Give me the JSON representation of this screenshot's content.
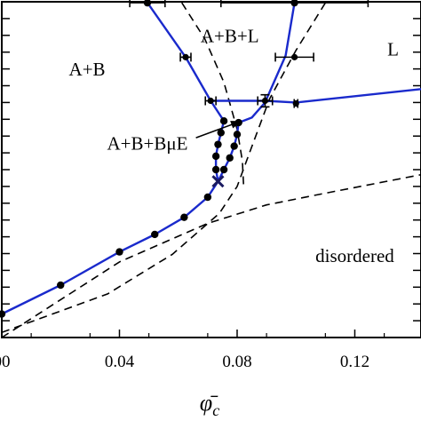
{
  "chart_data": {
    "type": "line",
    "xlabel": "φ̄",
    "xlabel_sub": "c",
    "xlim": [
      0.0,
      0.1425
    ],
    "ylim": [
      0.0,
      1.0
    ],
    "x_ticks": [
      0.0,
      0.04,
      0.08,
      0.12
    ],
    "x_tick_labels": [
      "00",
      "0.04",
      "0.08",
      "0.12"
    ],
    "y_ticks": [
      0.05,
      0.1,
      0.15,
      0.2,
      0.25,
      0.3,
      0.35,
      0.4,
      0.45,
      0.5,
      0.55,
      0.6,
      0.65,
      0.7,
      0.75,
      0.8,
      0.85,
      0.9,
      0.95
    ],
    "grid": false,
    "colors": {
      "phase_line": "#1a2acc",
      "dashed": "#000000",
      "points": "#000000"
    },
    "series": [
      {
        "style": "solid",
        "x": [
          0.0,
          0.02,
          0.04,
          0.052,
          0.062,
          0.07,
          0.072,
          0.0735
        ],
        "y": [
          0.07,
          0.156,
          0.255,
          0.307,
          0.358,
          0.418,
          0.445,
          0.465
        ]
      },
      {
        "style": "solid",
        "x": [
          0.0735,
          0.0728,
          0.0728,
          0.0735,
          0.0745,
          0.0755
        ],
        "y": [
          0.465,
          0.5,
          0.54,
          0.575,
          0.61,
          0.645
        ]
      },
      {
        "style": "solid",
        "x": [
          0.0735,
          0.0755,
          0.0775,
          0.079,
          0.08,
          0.0805
        ],
        "y": [
          0.465,
          0.5,
          0.535,
          0.57,
          0.605,
          0.64
        ]
      },
      {
        "style": "solid",
        "x": [
          0.0755,
          0.071,
          0.0625,
          0.0495
        ],
        "y": [
          0.645,
          0.705,
          0.835,
          0.997
        ]
      },
      {
        "style": "solid",
        "x": [
          0.0805,
          0.085,
          0.0895,
          0.0965,
          0.0995
        ],
        "y": [
          0.64,
          0.655,
          0.7,
          0.84,
          0.997
        ]
      },
      {
        "style": "solid",
        "x": [
          0.071,
          0.0895,
          0.1,
          0.1425
        ],
        "y": [
          0.705,
          0.705,
          0.7,
          0.74
        ]
      },
      {
        "style": "dashed",
        "x": [
          0.0612,
          0.069,
          0.0755,
          0.08,
          0.0818,
          0.0822
        ],
        "y": [
          0.997,
          0.89,
          0.76,
          0.62,
          0.525,
          0.45
        ]
      },
      {
        "style": "dashed",
        "x": [
          0.0,
          0.036,
          0.058,
          0.074,
          0.08,
          0.084,
          0.091,
          0.1,
          0.11
        ],
        "y": [
          0.015,
          0.13,
          0.248,
          0.37,
          0.45,
          0.545,
          0.71,
          0.855,
          0.997
        ]
      },
      {
        "style": "dashed",
        "x": [
          0.0,
          0.04,
          0.07,
          0.09,
          0.11,
          0.1425
        ],
        "y": [
          0.0,
          0.225,
          0.34,
          0.395,
          0.43,
          0.485
        ]
      }
    ],
    "points": {
      "x": [
        0.0,
        0.02,
        0.04,
        0.052,
        0.062,
        0.07,
        0.0728,
        0.0728,
        0.0735,
        0.0745,
        0.0755,
        0.0755,
        0.0775,
        0.079,
        0.08,
        0.0805,
        0.0495,
        0.0995
      ],
      "y": [
        0.07,
        0.156,
        0.255,
        0.307,
        0.358,
        0.418,
        0.5,
        0.54,
        0.575,
        0.61,
        0.645,
        0.5,
        0.535,
        0.57,
        0.605,
        0.64,
        0.997,
        0.997
      ]
    },
    "error_bars": [
      {
        "x": 0.0625,
        "y": 0.835,
        "xerr": 0.0018
      },
      {
        "x": 0.0995,
        "y": 0.835,
        "xerr": 0.0065
      },
      {
        "x": 0.071,
        "y": 0.705,
        "xerr": 0.0018
      },
      {
        "x": 0.0895,
        "y": 0.705,
        "xerr": 0.0025,
        "yerr": 0.018
      },
      {
        "x": 0.1,
        "y": 0.697,
        "xerr": 0.0006
      },
      {
        "x": 0.0495,
        "y": 0.997,
        "xerr": 0.006
      },
      {
        "x": 0.0995,
        "y": 0.997,
        "xerr": 0.025
      }
    ],
    "markers": [
      {
        "type": "cross",
        "x": 0.0735,
        "y": 0.465
      }
    ],
    "annotations": [
      {
        "text": "A+B+L",
        "x": 0.0775,
        "y": 0.88,
        "anchor": "middle"
      },
      {
        "text": "L",
        "x": 0.133,
        "y": 0.84,
        "anchor": "middle"
      },
      {
        "text": "A+B",
        "x": 0.029,
        "y": 0.78,
        "anchor": "middle"
      },
      {
        "text": "A+B+BμE",
        "x": 0.0495,
        "y": 0.56,
        "anchor": "middle"
      },
      {
        "text": "disordered",
        "x": 0.12,
        "y": 0.225,
        "anchor": "middle"
      }
    ],
    "arrow": {
      "from": [
        0.066,
        0.595
      ],
      "to": [
        0.0815,
        0.645
      ]
    }
  }
}
